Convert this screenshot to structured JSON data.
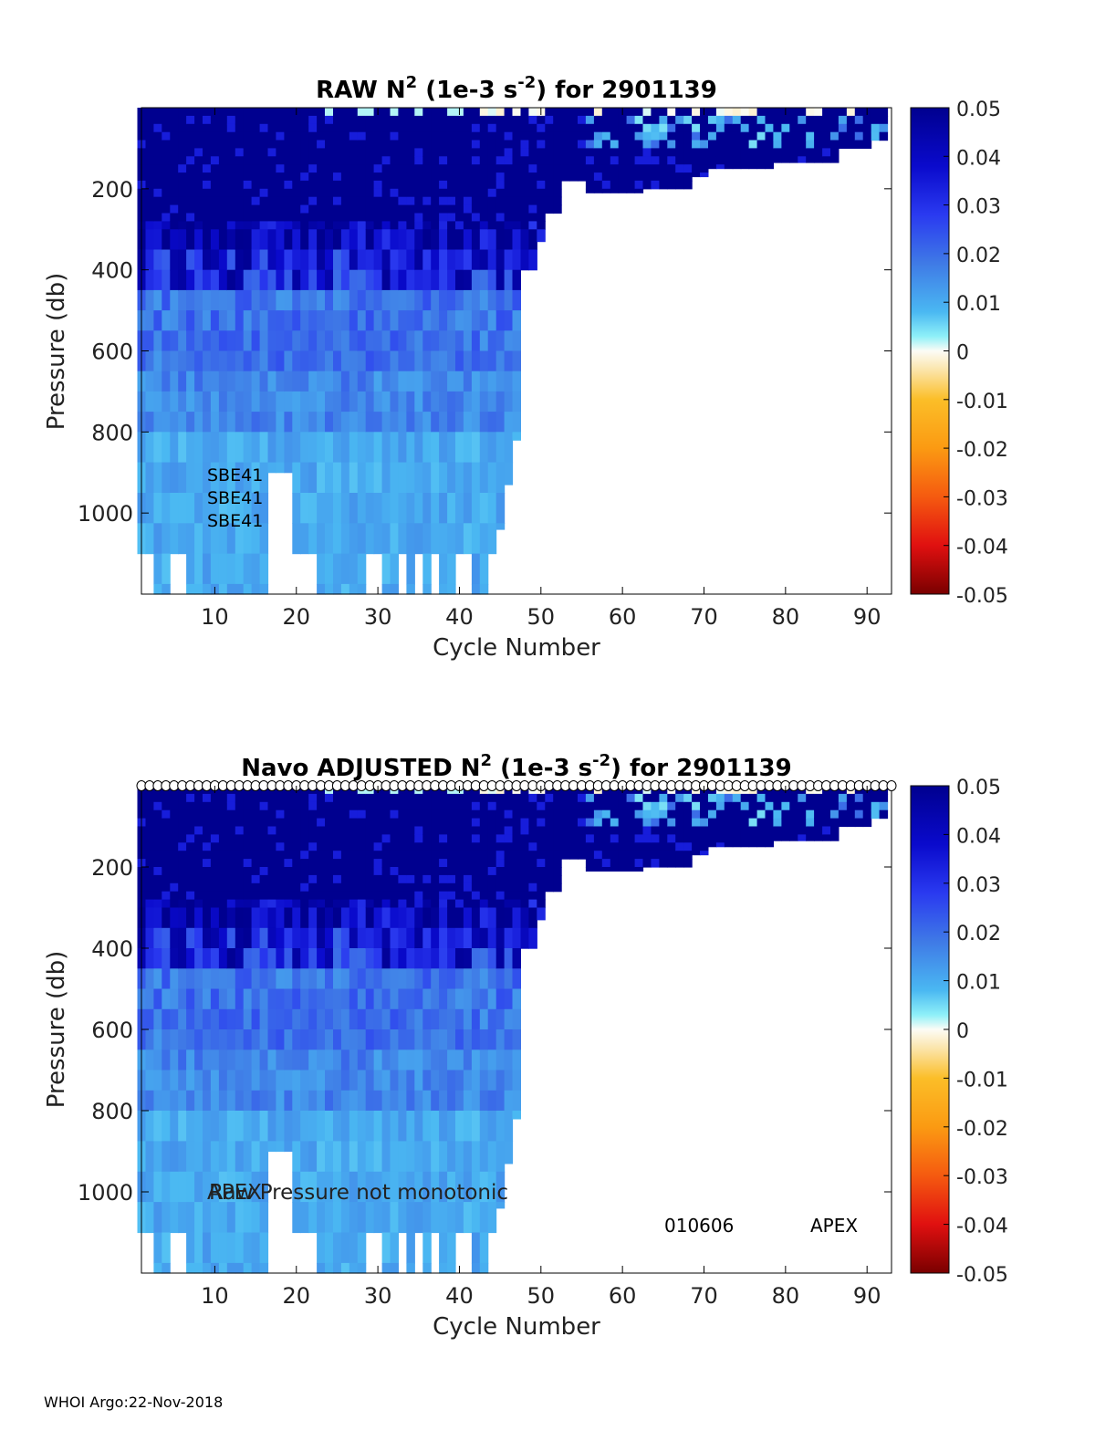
{
  "footer": "WHOI Argo:22-Nov-2018",
  "chart_data": [
    {
      "type": "heatmap",
      "title_main": "RAW N",
      "title_sup": "2",
      "title_mid": " (1e-3 s",
      "title_sup2": "-2",
      "title_end": ") for 2901139",
      "xlabel": "Cycle Number",
      "ylabel": "Pressure (db)",
      "xlim": [
        1,
        93
      ],
      "ylim": [
        0,
        1200
      ],
      "xticks": [
        10,
        20,
        30,
        40,
        50,
        60,
        70,
        80,
        90
      ],
      "yticks": [
        200,
        400,
        600,
        800,
        1000
      ],
      "colorbar_ticks": [
        "0.05",
        "0.04",
        "0.03",
        "0.02",
        "0.01",
        "0",
        "-0.01",
        "-0.02",
        "-0.03",
        "-0.04",
        "-0.05"
      ],
      "clim": [
        -0.05,
        0.05
      ],
      "annotations": [
        "SBE41",
        "SBE41",
        "SBE41"
      ],
      "qc_markers": false
    },
    {
      "type": "heatmap",
      "title_main": "Navo  ADJUSTED N",
      "title_sup": "2",
      "title_mid": " (1e-3 s",
      "title_sup2": "-2",
      "title_end": ") for 2901139",
      "xlabel": "Cycle Number",
      "ylabel": "Pressure (db)",
      "xlim": [
        1,
        93
      ],
      "ylim": [
        0,
        1200
      ],
      "xticks": [
        10,
        20,
        30,
        40,
        50,
        60,
        70,
        80,
        90
      ],
      "yticks": [
        200,
        400,
        600,
        800,
        1000
      ],
      "colorbar_ticks": [
        "0.05",
        "0.04",
        "0.03",
        "0.02",
        "0.01",
        "0",
        "-0.01",
        "-0.02",
        "-0.03",
        "-0.04",
        "-0.05"
      ],
      "clim": [
        -0.05,
        0.05
      ],
      "annotations": [
        "APEX",
        "Raw Pressure not monotonic",
        "010606",
        "APEX"
      ],
      "qc_markers": true
    }
  ]
}
